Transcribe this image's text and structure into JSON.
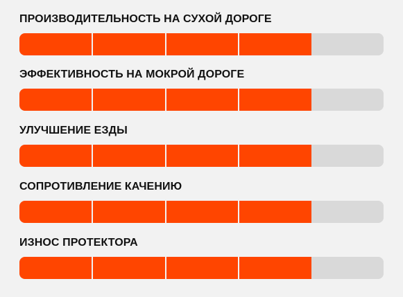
{
  "colors": {
    "background": "#f2f2f2",
    "filled": "#ff4500",
    "empty": "#d9d9d9",
    "label": "#111111"
  },
  "ratings": [
    {
      "label": "ПРОИЗВОДИТЕЛЬНОСТЬ НА СУХОЙ ДОРОГЕ",
      "filled_segments": 4,
      "total_segments": 5
    },
    {
      "label": "ЭФФЕКТИВНОСТЬ НА МОКРОЙ ДОРОГЕ",
      "filled_segments": 4,
      "total_segments": 5
    },
    {
      "label": "УЛУЧШЕНИЕ ЕЗДЫ",
      "filled_segments": 4,
      "total_segments": 5
    },
    {
      "label": "СОПРОТИВЛЕНИЕ КАЧЕНИЮ",
      "filled_segments": 4,
      "total_segments": 5
    },
    {
      "label": "ИЗНОС ПРОТЕКТОРА",
      "filled_segments": 4,
      "total_segments": 5
    }
  ]
}
